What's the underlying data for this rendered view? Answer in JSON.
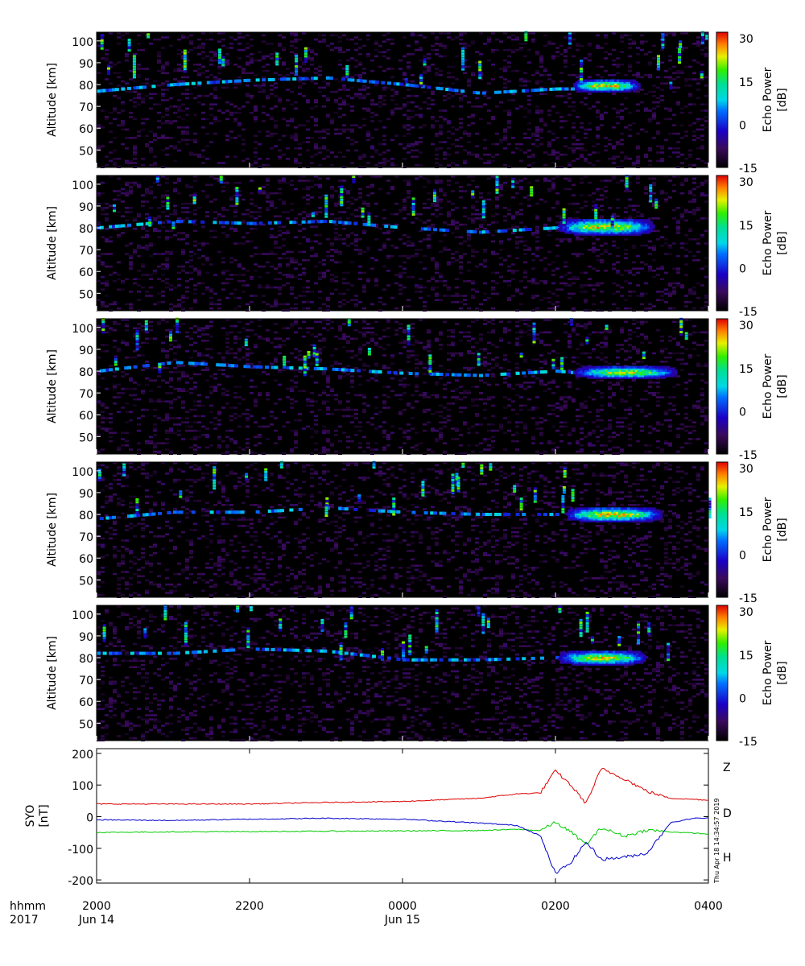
{
  "chart_data": [
    {
      "type": "heatmap",
      "panel": 1,
      "ylabel": "Altitude [km]",
      "yticks": [
        50,
        60,
        70,
        80,
        90,
        100
      ],
      "ylim": [
        42,
        104
      ],
      "colorbar": {
        "label": "Echo Power [dB]",
        "ticks": [
          -15,
          0,
          15,
          30
        ],
        "range": [
          -15,
          32
        ]
      },
      "echo_layer": [
        [
          20.0,
          77
        ],
        [
          21.0,
          80
        ],
        [
          22.0,
          82
        ],
        [
          23.0,
          83
        ],
        [
          24.0,
          80
        ],
        [
          25.0,
          76
        ],
        [
          26.0,
          78
        ],
        [
          26.33,
          78
        ]
      ],
      "x_bounds_hours": [
        20,
        28
      ],
      "strong_echo": {
        "x": [
          26.2,
          27.1
        ],
        "alt": [
          77,
          82
        ],
        "peak_db": 30
      }
    },
    {
      "type": "heatmap",
      "panel": 2,
      "ylabel": "Altitude [km]",
      "yticks": [
        50,
        60,
        70,
        80,
        90,
        100
      ],
      "ylim": [
        42,
        104
      ],
      "colorbar": {
        "label": "Echo Power [dB]",
        "ticks": [
          -15,
          0,
          15,
          30
        ],
        "range": [
          -15,
          32
        ]
      },
      "echo_layer": [
        [
          20.0,
          80
        ],
        [
          21.0,
          83
        ],
        [
          22.0,
          82
        ],
        [
          23.0,
          83
        ],
        [
          24.0,
          80
        ],
        [
          25.0,
          78
        ],
        [
          26.0,
          80
        ],
        [
          26.33,
          80
        ]
      ],
      "x_bounds_hours": [
        20,
        28
      ],
      "strong_echo": {
        "x": [
          26.0,
          27.3
        ],
        "alt": [
          77,
          84
        ],
        "peak_db": 28
      }
    },
    {
      "type": "heatmap",
      "panel": 3,
      "ylabel": "Altitude [km]",
      "yticks": [
        50,
        60,
        70,
        80,
        90,
        100
      ],
      "ylim": [
        42,
        104
      ],
      "colorbar": {
        "label": "Echo Power [dB]",
        "ticks": [
          -15,
          0,
          15,
          30
        ],
        "range": [
          -15,
          32
        ]
      },
      "echo_layer": [
        [
          20.0,
          80
        ],
        [
          21.0,
          84
        ],
        [
          22.0,
          82
        ],
        [
          23.0,
          81
        ],
        [
          24.0,
          79
        ],
        [
          25.0,
          78
        ],
        [
          26.0,
          80
        ],
        [
          26.33,
          79
        ]
      ],
      "x_bounds_hours": [
        20,
        28
      ],
      "strong_echo": {
        "x": [
          26.2,
          27.6
        ],
        "alt": [
          77,
          82
        ],
        "peak_db": 26
      }
    },
    {
      "type": "heatmap",
      "panel": 4,
      "ylabel": "Altitude [km]",
      "yticks": [
        50,
        60,
        70,
        80,
        90,
        100
      ],
      "ylim": [
        42,
        104
      ],
      "colorbar": {
        "label": "Echo Power [dB]",
        "ticks": [
          -15,
          0,
          15,
          30
        ],
        "range": [
          -15,
          32
        ]
      },
      "echo_layer": [
        [
          20.0,
          78
        ],
        [
          21.0,
          81
        ],
        [
          22.0,
          81
        ],
        [
          23.0,
          83
        ],
        [
          24.0,
          81
        ],
        [
          25.0,
          80
        ],
        [
          26.0,
          80
        ],
        [
          26.33,
          80
        ]
      ],
      "x_bounds_hours": [
        20,
        28
      ],
      "strong_echo": {
        "x": [
          26.1,
          27.4
        ],
        "alt": [
          77,
          83
        ],
        "peak_db": 30
      }
    },
    {
      "type": "heatmap",
      "panel": 5,
      "ylabel": "Altitude [km]",
      "yticks": [
        50,
        60,
        70,
        80,
        90,
        100
      ],
      "ylim": [
        42,
        104
      ],
      "colorbar": {
        "label": "Echo Power [dB]",
        "ticks": [
          -15,
          0,
          15,
          30
        ],
        "range": [
          -15,
          32
        ]
      },
      "echo_layer": [
        [
          20.0,
          82
        ],
        [
          21.0,
          82
        ],
        [
          22.0,
          84
        ],
        [
          23.0,
          83
        ],
        [
          24.0,
          79
        ],
        [
          25.0,
          79
        ],
        [
          26.0,
          80
        ],
        [
          26.33,
          80
        ]
      ],
      "x_bounds_hours": [
        20,
        28
      ],
      "strong_echo": {
        "x": [
          26.0,
          27.2
        ],
        "alt": [
          77,
          83
        ],
        "peak_db": 27
      }
    },
    {
      "type": "line",
      "panel": 6,
      "ylabel": "SYO [nT]",
      "ylim": [
        -210,
        215
      ],
      "yticks": [
        -200,
        -100,
        0,
        100,
        200
      ],
      "series": [
        {
          "name": "Z",
          "color": "#dd0000",
          "x": [
            20.0,
            21.0,
            22.0,
            23.0,
            24.0,
            25.0,
            25.5,
            25.8,
            26.0,
            26.2,
            26.4,
            26.6,
            26.9,
            27.2,
            27.5,
            27.8,
            28.0
          ],
          "y": [
            40,
            40,
            40,
            45,
            48,
            58,
            72,
            75,
            145,
            100,
            42,
            152,
            120,
            80,
            58,
            55,
            52
          ]
        },
        {
          "name": "D",
          "color": "#00cc00",
          "x": [
            20.0,
            21.0,
            22.0,
            23.0,
            24.0,
            25.0,
            25.5,
            25.8,
            26.0,
            26.2,
            26.4,
            26.6,
            26.9,
            27.2,
            27.5,
            27.8,
            28.0
          ],
          "y": [
            -50,
            -48,
            -47,
            -46,
            -45,
            -44,
            -40,
            -44,
            -18,
            -48,
            -88,
            -35,
            -62,
            -42,
            -48,
            -52,
            -55
          ]
        },
        {
          "name": "H",
          "color": "#0000cc",
          "x": [
            20.0,
            21.0,
            22.0,
            23.0,
            24.0,
            25.0,
            25.5,
            25.8,
            26.0,
            26.2,
            26.4,
            26.6,
            26.9,
            27.2,
            27.5,
            27.8,
            28.0
          ],
          "y": [
            -10,
            -12,
            -8,
            -5,
            -8,
            -20,
            -28,
            -60,
            -180,
            -145,
            -80,
            -135,
            -128,
            -115,
            -20,
            -5,
            -5
          ]
        }
      ]
    }
  ],
  "x_axis": {
    "range_hours": [
      20,
      28
    ],
    "ticks": [
      {
        "h": 20,
        "label": "2000"
      },
      {
        "h": 22,
        "label": "2200"
      },
      {
        "h": 24,
        "label": "0000"
      },
      {
        "h": 26,
        "label": "0200"
      },
      {
        "h": 28,
        "label": "0400"
      }
    ],
    "row_label_top": "hhmm",
    "row_label_bottom": "2017",
    "dates": [
      {
        "h": 20,
        "label": "Jun 14"
      },
      {
        "h": 24,
        "label": "Jun 15"
      }
    ]
  },
  "timestamp": "Thu Apr 18 14:34:57 2019"
}
